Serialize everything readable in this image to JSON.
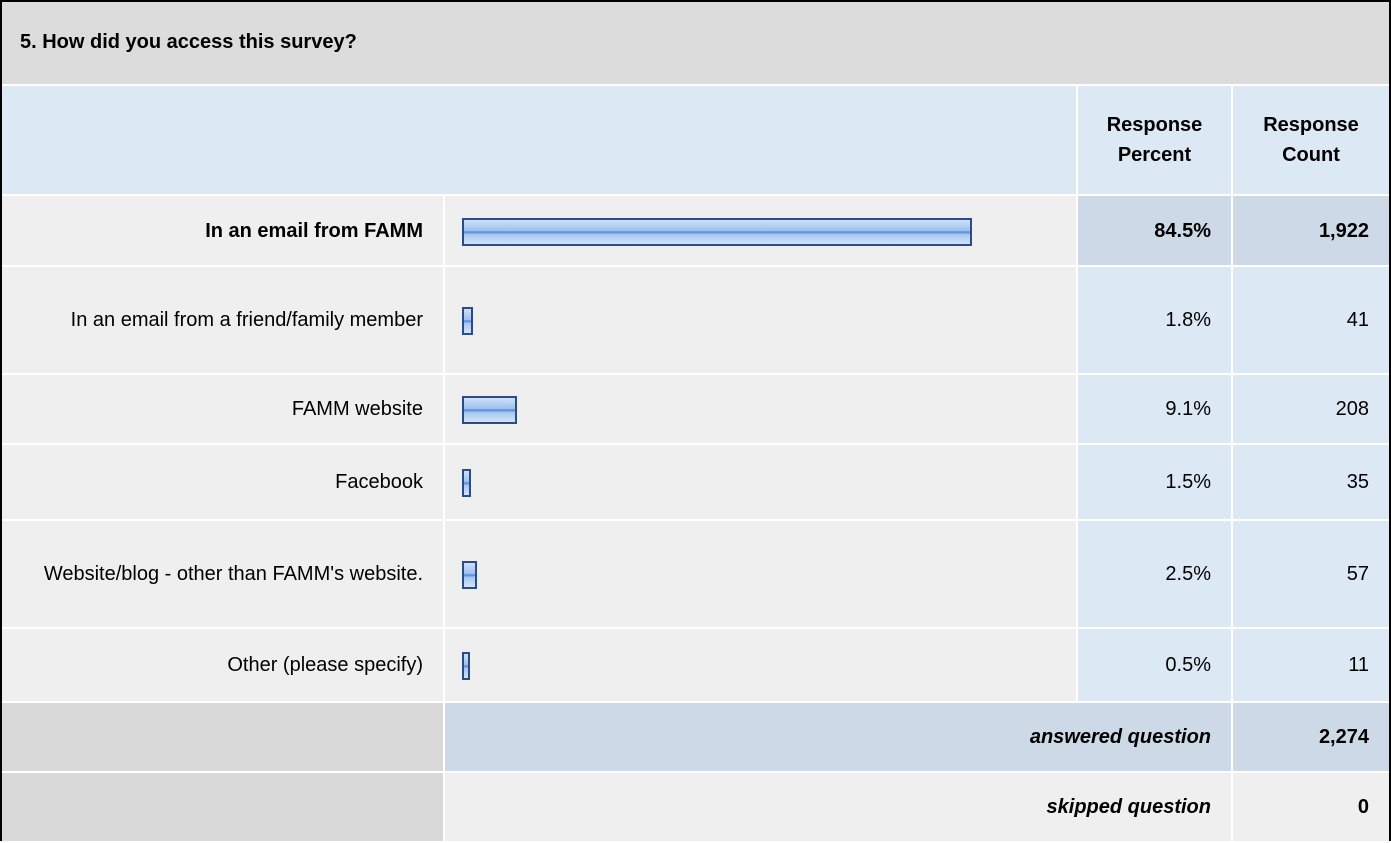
{
  "question": "5. How did you access this survey?",
  "columns": {
    "percent": "Response Percent",
    "count": "Response Count"
  },
  "table": {
    "rows": [
      {
        "label": "In an email from FAMM",
        "percent": {
          "value": 84.5,
          "label": "84.5%"
        },
        "count": "1,922"
      },
      {
        "label": "In an email from a friend/family member",
        "percent": {
          "value": 1.8,
          "label": "1.8%"
        },
        "count": "41"
      },
      {
        "label": "FAMM website",
        "percent": {
          "value": 9.1,
          "label": "9.1%"
        },
        "count": "208"
      },
      {
        "label": "Facebook",
        "percent": {
          "value": 1.5,
          "label": "1.5%"
        },
        "count": "35"
      },
      {
        "label": "Website/blog - other than FAMM's website.",
        "percent": {
          "value": 2.5,
          "label": "2.5%"
        },
        "count": "57"
      },
      {
        "label": "Other (please specify)",
        "percent": {
          "value": 0.5,
          "label": "0.5%"
        },
        "count": "11"
      }
    ]
  },
  "summary": {
    "answered_label": "answered question",
    "answered": "2,274",
    "skipped_label": "skipped question",
    "skipped": "0"
  }
}
